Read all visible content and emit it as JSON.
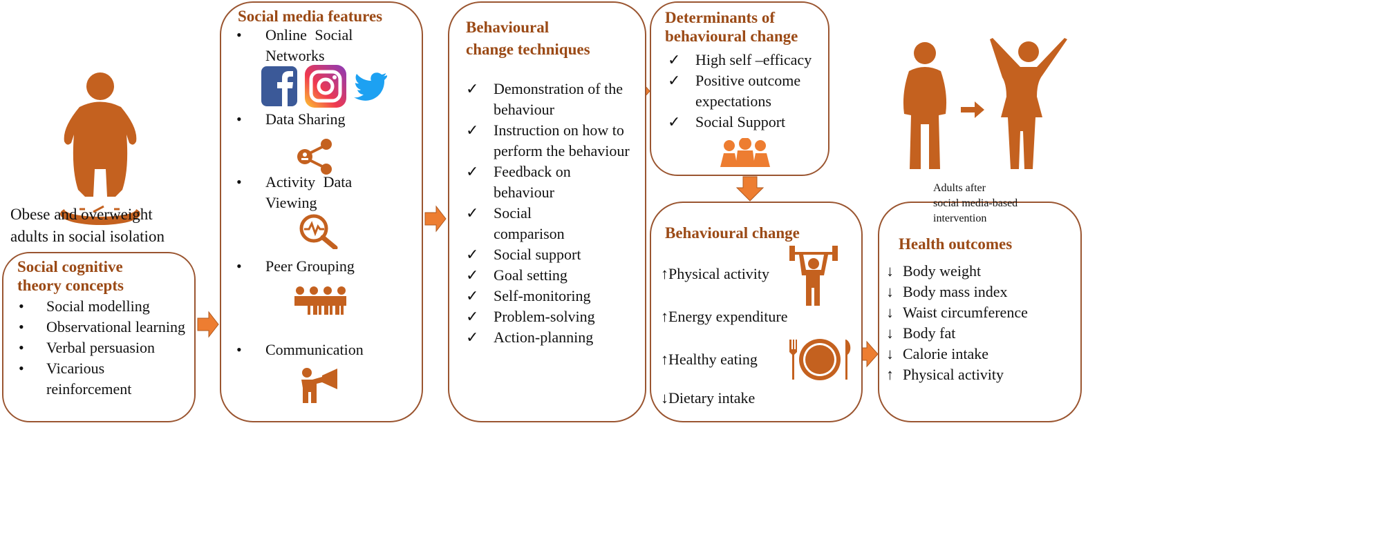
{
  "left": {
    "caption": "Obese and overweight adults in social isolation",
    "caption_lines": [
      "Obese and overweight",
      "adults in social isolation"
    ],
    "icon": "obese-person-on-scale-icon"
  },
  "sct": {
    "title_lines": [
      "Social cognitive",
      "theory concepts"
    ],
    "items": [
      "Social modelling",
      "Observational learning",
      "Verbal persuasion",
      "Vicarious reinforcement"
    ]
  },
  "social_media": {
    "title": "Social media features",
    "items": [
      {
        "label": "Online Social Networks",
        "icons": [
          "facebook-icon",
          "instagram-icon",
          "twitter-icon"
        ]
      },
      {
        "label": "Data Sharing",
        "icons": [
          "share-icon"
        ]
      },
      {
        "label": "Activity Data Viewing",
        "icons": [
          "activity-search-icon"
        ]
      },
      {
        "label": "Peer Grouping",
        "icons": [
          "group-icon"
        ]
      },
      {
        "label": "Communication",
        "icons": [
          "megaphone-person-icon"
        ]
      }
    ]
  },
  "bct": {
    "title_lines": [
      "Behavioural",
      "change techniques"
    ],
    "items": [
      "Demonstration of the behaviour",
      "Instruction on how to perform the behaviour",
      "Feedback on behaviour",
      "Social comparison",
      "Social support",
      "Goal setting",
      "Self-monitoring",
      "Problem-solving",
      "Action-planning"
    ]
  },
  "determinants": {
    "title_lines": [
      "Determinants of",
      "behavioural change"
    ],
    "items": [
      "High self –efficacy",
      "Positive outcome expectations",
      "Social Support"
    ]
  },
  "behaviour": {
    "title": "Behavioural change",
    "items": [
      {
        "dir": "up",
        "label": "Physical activity"
      },
      {
        "dir": "up",
        "label": "Energy expenditure"
      },
      {
        "dir": "up",
        "label": "Healthy eating"
      },
      {
        "dir": "down",
        "label": "Dietary intake"
      }
    ]
  },
  "health": {
    "title": "Health outcomes",
    "items": [
      {
        "dir": "down",
        "label": "Body weight"
      },
      {
        "dir": "down",
        "label": "Body mass index"
      },
      {
        "dir": "down",
        "label": "Waist circumference"
      },
      {
        "dir": "down",
        "label": "Body fat"
      },
      {
        "dir": "down",
        "label": "Calorie intake"
      },
      {
        "dir": "up",
        "label": "Physical activity"
      }
    ]
  },
  "after": {
    "caption_lines": [
      "Adults after",
      "social media-based",
      "intervention"
    ]
  },
  "colors": {
    "accent": "#c4611f",
    "title": "#9b4a16",
    "border": "#9a5530",
    "arrow": "#ed7d31"
  }
}
